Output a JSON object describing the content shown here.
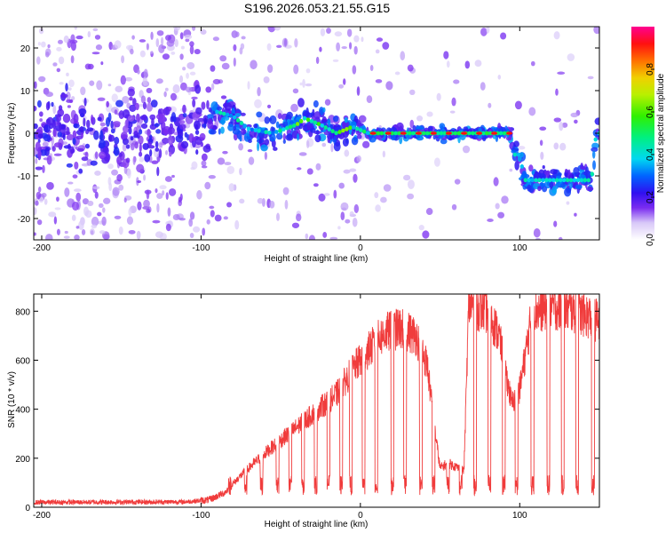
{
  "title": "S196.2026.053.21.55.G15",
  "chart_data": [
    {
      "type": "heatmap",
      "xlabel": "Height of straight line (km)",
      "ylabel": "Frequency (Hz)",
      "xlim": [
        -205,
        150
      ],
      "ylim": [
        -25,
        25
      ],
      "xticks": [
        -200,
        -100,
        0,
        100
      ],
      "yticks": [
        -20,
        -10,
        0,
        10,
        20
      ],
      "colorbar": {
        "label": "Normalized spectral amplitude",
        "range": [
          0,
          1
        ],
        "ticks": [
          "0.0",
          "0.2",
          "0.4",
          "0.6",
          "0.8"
        ],
        "tick_values": [
          0.0,
          0.2,
          0.4,
          0.6,
          0.8
        ]
      },
      "ridge": [
        {
          "x": -200,
          "f": 0
        },
        {
          "x": -150,
          "f": 0
        },
        {
          "x": -100,
          "f": 1
        },
        {
          "x": -90,
          "f": 5
        },
        {
          "x": -80,
          "f": 4
        },
        {
          "x": -70,
          "f": 1
        },
        {
          "x": -55,
          "f": 0
        },
        {
          "x": -40,
          "f": 2
        },
        {
          "x": -35,
          "f": 3.5
        },
        {
          "x": -25,
          "f": 2
        },
        {
          "x": -15,
          "f": 0
        },
        {
          "x": -5,
          "f": 1.5
        },
        {
          "x": 5,
          "f": 0
        },
        {
          "x": 95,
          "f": 0
        },
        {
          "x": 97,
          "f": -5
        },
        {
          "x": 100,
          "f": -5
        },
        {
          "x": 103,
          "f": -11
        },
        {
          "x": 145,
          "f": -11
        },
        {
          "x": 148,
          "f": 0
        }
      ]
    },
    {
      "type": "line",
      "xlabel": "Height of straight line (km)",
      "ylabel": "SNR (10 * v/v)",
      "xlim": [
        -205,
        150
      ],
      "ylim": [
        0,
        870
      ],
      "xticks": [
        -200,
        -100,
        0,
        100
      ],
      "yticks": [
        0,
        200,
        400,
        600,
        800
      ],
      "color": "#f03c3c",
      "envelope": [
        {
          "x": -205,
          "y": 20
        },
        {
          "x": -110,
          "y": 22
        },
        {
          "x": -95,
          "y": 30
        },
        {
          "x": -85,
          "y": 60
        },
        {
          "x": -75,
          "y": 130
        },
        {
          "x": -60,
          "y": 220
        },
        {
          "x": -45,
          "y": 300
        },
        {
          "x": -30,
          "y": 380
        },
        {
          "x": -15,
          "y": 460
        },
        {
          "x": -5,
          "y": 560
        },
        {
          "x": 5,
          "y": 640
        },
        {
          "x": 15,
          "y": 710
        },
        {
          "x": 25,
          "y": 730
        },
        {
          "x": 35,
          "y": 700
        },
        {
          "x": 42,
          "y": 580
        },
        {
          "x": 46,
          "y": 350
        },
        {
          "x": 50,
          "y": 160
        },
        {
          "x": 55,
          "y": 180
        },
        {
          "x": 65,
          "y": 150
        },
        {
          "x": 68,
          "y": 830
        },
        {
          "x": 80,
          "y": 800
        },
        {
          "x": 87,
          "y": 700
        },
        {
          "x": 95,
          "y": 420
        },
        {
          "x": 100,
          "y": 480
        },
        {
          "x": 108,
          "y": 800
        },
        {
          "x": 120,
          "y": 820
        },
        {
          "x": 135,
          "y": 800
        },
        {
          "x": 150,
          "y": 760
        }
      ],
      "dips": [
        -82,
        -72,
        -62,
        -52,
        -44,
        -36,
        -28,
        -20,
        -12,
        -6,
        2,
        10,
        20,
        28,
        38,
        46,
        55,
        63,
        72,
        81,
        90,
        98,
        108,
        118,
        127,
        136,
        146
      ],
      "dip_level": 120
    }
  ]
}
